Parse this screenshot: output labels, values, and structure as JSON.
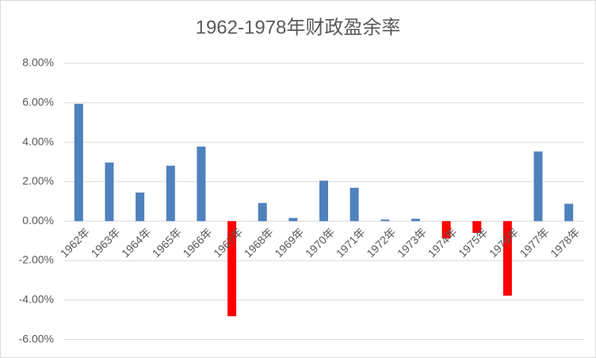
{
  "chart_data": {
    "type": "bar",
    "title": "1962-1978年财政盈余率",
    "categories": [
      "1962年",
      "1963年",
      "1964年",
      "1965年",
      "1966年",
      "1967年",
      "1968年",
      "1969年",
      "1970年",
      "1971年",
      "1972年",
      "1973年",
      "1974年",
      "1975年",
      "1976年",
      "1977年",
      "1978年"
    ],
    "values": [
      5.95,
      2.97,
      1.45,
      2.81,
      3.78,
      -4.82,
      0.92,
      0.16,
      2.05,
      1.69,
      0.08,
      0.12,
      -0.88,
      -0.6,
      -3.78,
      3.53,
      0.88
    ],
    "color": "#4f81bd",
    "negative_color": "#ff0000",
    "ylim": [
      -6,
      8
    ],
    "yticks": [
      {
        "value": -6,
        "label": "-6.00%"
      },
      {
        "value": -4,
        "label": "-4.00%"
      },
      {
        "value": -2,
        "label": "-2.00%"
      },
      {
        "value": 0,
        "label": "0.00%"
      },
      {
        "value": 2,
        "label": "2.00%"
      },
      {
        "value": 4,
        "label": "4.00%"
      },
      {
        "value": 6,
        "label": "6.00%"
      },
      {
        "value": 8,
        "label": "8.00%"
      }
    ],
    "grid": true
  }
}
